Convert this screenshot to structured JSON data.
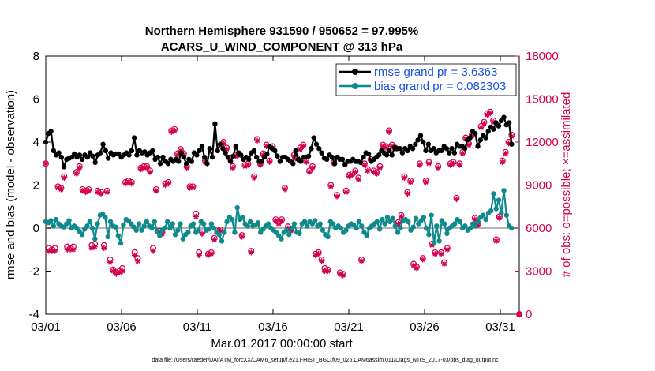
{
  "chart_data": {
    "type": "line",
    "title": "Northern Hemisphere 931590 / 950652 = 97.995%",
    "subtitle": "ACARS_U_WIND_COMPONENT @ 313 hPa",
    "xlabel": "Mar.01,2017 00:00:00 start",
    "ylabel_left": "rmse and bias (model - observation)",
    "ylabel_right": "# of obs: o=possible; ×=assimilated",
    "footnote": "data file: /Users/raeder/DAI/ATM_forcXX/CAM6_setup/f.e21.FHIST_BGC.f09_025.CAM6assim.011/Diags_NTrS_2017-03/obs_diag_output.nc",
    "xlim": [
      1,
      32.25
    ],
    "ylim_left": [
      -4,
      8
    ],
    "ylim_right": [
      0,
      18000
    ],
    "x_ticks": [
      1,
      6,
      11,
      16,
      21,
      26,
      31
    ],
    "x_tick_labels": [
      "03/01",
      "03/06",
      "03/11",
      "03/16",
      "03/21",
      "03/26",
      "03/31"
    ],
    "y_left_ticks": [
      "8",
      "6",
      "4",
      "2",
      "0",
      "-2",
      "-4"
    ],
    "y_right_ticks": [
      "18000",
      "15000",
      "12000",
      "9000",
      "6000",
      "3000",
      "0"
    ],
    "colors": {
      "rmse": "#000000",
      "bias": "#0f8a8c",
      "obs": "#d4004f",
      "legend_text": "#1d52e0",
      "zero_line": "#b4b4b4"
    },
    "legend": [
      {
        "name": "rmse grand pr = 3.6363"
      },
      {
        "name": "bias grand pr = 0.082303"
      }
    ],
    "series": [
      {
        "name": "rmse",
        "values": [
          4.0,
          4.4,
          4.5,
          3.6,
          3.4,
          3.5,
          3.3,
          2.85,
          3.2,
          3.25,
          3.3,
          3.45,
          3.3,
          3.4,
          3.2,
          3.4,
          3.3,
          3.5,
          3.35,
          3.05,
          3.4,
          3.5,
          3.9,
          3.6,
          3.25,
          3.5,
          3.4,
          3.45,
          3.45,
          3.3,
          3.4,
          3.5,
          3.4,
          3.6,
          4.2,
          3.4,
          3.6,
          3.5,
          3.55,
          3.4,
          3.5,
          3.6,
          3.2,
          3.3,
          3.0,
          3.3,
          3.1,
          3.0,
          3.2,
          3.1,
          3.2,
          3.1,
          3.5,
          3.3,
          3.0,
          3.2,
          3.1,
          3.5,
          3.4,
          3.6,
          3.8,
          3.3,
          3.0,
          3.7,
          3.3,
          4.85,
          3.6,
          3.9,
          3.7,
          3.5,
          3.3,
          3.1,
          3.35,
          3.8,
          3.5,
          3.4,
          3.2,
          3.3,
          3.2,
          3.5,
          3.6,
          3.3,
          3.1,
          3.1,
          3.3,
          3.45,
          3.8,
          3.7,
          3.6,
          3.35,
          3.1,
          3.3,
          3.3,
          3.2,
          3.1,
          3.0,
          3.6,
          3.2,
          3.1,
          3.3,
          3.3,
          3.35,
          3.7,
          4.2,
          3.9,
          3.7,
          3.5,
          3.25,
          3.2,
          3.4,
          3.3,
          3.0,
          3.3,
          3.2,
          3.2,
          2.95,
          3.1,
          3.1,
          3.2,
          3.1,
          3.1,
          3.05,
          3.3,
          3.5,
          3.45,
          3.1,
          3.2,
          3.3,
          3.4,
          3.6,
          3.5,
          3.4,
          3.6,
          3.4,
          3.75,
          3.7,
          3.7,
          3.5,
          3.7,
          3.6,
          3.8,
          3.7,
          3.9,
          4.1,
          4.3,
          4.0,
          3.6,
          3.9,
          3.6,
          3.7,
          3.5,
          3.6,
          3.6,
          3.8,
          3.7,
          3.5,
          3.7,
          3.5,
          3.9,
          3.8,
          3.8,
          3.7,
          4.1,
          4.2,
          4.5,
          4.4,
          3.8,
          4.1,
          4.3,
          4.2,
          4.5,
          4.7,
          4.6,
          4.9,
          4.75,
          5.0,
          5.15,
          4.8,
          4.9,
          3.9
        ]
      },
      {
        "name": "bias",
        "values": [
          0.3,
          0.25,
          0.35,
          0.1,
          0.4,
          0.2,
          0.1,
          0.05,
          0.2,
          0.35,
          0.0,
          0.1,
          0.0,
          -0.15,
          -0.3,
          -0.05,
          0.1,
          0.3,
          0.0,
          -0.5,
          0.2,
          0.6,
          0.65,
          0.5,
          -0.4,
          0.3,
          0.1,
          0.05,
          -0.35,
          -0.7,
          0.15,
          0.4,
          0.35,
          0.2,
          0.05,
          -0.1,
          0.2,
          -0.1,
          0.1,
          0.3,
          0.1,
          0.0,
          0.3,
          -0.15,
          -0.35,
          -0.1,
          0.0,
          0.3,
          0.0,
          0.2,
          -0.3,
          -0.1,
          0.2,
          -0.5,
          -0.3,
          -0.2,
          0.1,
          0.2,
          -0.2,
          -0.1,
          0.3,
          0.2,
          -0.1,
          -0.05,
          0.2,
          0.0,
          -0.2,
          -0.3,
          -0.6,
          -0.2,
          0.3,
          0.5,
          0.4,
          -0.2,
          0.95,
          0.4,
          0.5,
          0.2,
          0.1,
          0.3,
          0.1,
          0.15,
          0.25,
          -0.2,
          -0.05,
          0.1,
          0.2,
          0.0,
          -0.1,
          -0.2,
          -0.35,
          -0.5,
          -0.2,
          -0.1,
          -0.3,
          0.0,
          0.2,
          -0.2,
          -0.25,
          0.2,
          0.3,
          0.1,
          0.3,
          0.2,
          0.35,
          0.1,
          0.2,
          -0.1,
          -0.3,
          -0.4,
          0.3,
          0.2,
          0.0,
          0.1,
          0.0,
          -0.2,
          -0.1,
          0.1,
          0.2,
          0.15,
          0.0,
          0.3,
          0.1,
          -0.2,
          -0.35,
          0.0,
          0.1,
          0.2,
          0.3,
          -0.05,
          0.4,
          0.2,
          0.5,
          0.3,
          0.45,
          0.1,
          -0.2,
          0.0,
          0.35,
          0.4,
          0.3,
          -0.1,
          0.05,
          0.45,
          0.2,
          0.35,
          0.5,
          0.0,
          -0.3,
          0.6,
          -0.7,
          0.1,
          -0.6,
          0.35,
          0.2,
          -0.25,
          0.0,
          0.1,
          0.2,
          0.4,
          0.3,
          0.0,
          0.1,
          -0.1,
          0.0,
          0.2,
          0.1,
          0.3,
          0.5,
          0.6,
          0.4,
          0.7,
          0.8,
          1.6,
          0.9,
          1.3,
          0.7,
          1.75,
          0.6,
          0.1,
          0.0
        ]
      },
      {
        "name": "obs_possible",
        "values": [
          10500,
          4600,
          4500,
          4600,
          8900,
          8800,
          9600,
          4700,
          4600,
          4700,
          9900,
          10300,
          8700,
          8600,
          8700,
          4800,
          4900,
          8600,
          8500,
          4800,
          8600,
          3800,
          3100,
          2900,
          3000,
          3200,
          9200,
          9300,
          9200,
          4300,
          3900,
          10200,
          10300,
          10300,
          10000,
          4600,
          8700,
          5800,
          5700,
          9100,
          9200,
          12800,
          12900,
          11200,
          11500,
          11200,
          10300,
          8900,
          8900,
          7000,
          4300,
          5700,
          10700,
          4200,
          4300,
          5300,
          5900,
          5900,
          12000,
          11600,
          10900,
          10300,
          11100,
          11200,
          5500,
          10400,
          10500,
          4400,
          9600,
          12200,
          10500,
          11200,
          11800,
          10700,
          11700,
          6600,
          6400,
          6600,
          8800,
          6100,
          5900,
          11100,
          10900,
          11600,
          11800,
          10700,
          10000,
          10300,
          4200,
          4300,
          3800,
          3200,
          3100,
          9000,
          10600,
          8300,
          2900,
          2800,
          8600,
          9700,
          9800,
          10000,
          9500,
          3800,
          10500,
          10100,
          10800,
          10000,
          9900,
          10300,
          11800,
          11700,
          12800,
          11800,
          11600,
          6400,
          6900,
          9600,
          8500,
          9300,
          3500,
          3300,
          10500,
          3900,
          9300,
          10600,
          4900,
          4300,
          10300,
          4300,
          3600,
          4600,
          10500,
          10600,
          8100,
          10500,
          11300,
          12300,
          11900,
          12500,
          6700,
          6300,
          13100,
          13400,
          14000,
          14100,
          13500,
          5200,
          6800,
          10700,
          11300,
          12000,
          12500
        ]
      },
      {
        "name": "obs_assimilated",
        "values": [
          10500,
          4400,
          4400,
          4400,
          8800,
          8700,
          9500,
          4500,
          4500,
          4500,
          9800,
          10200,
          8600,
          8500,
          8600,
          4600,
          4700,
          8500,
          8400,
          4600,
          8500,
          3600,
          3000,
          2800,
          2900,
          3000,
          9100,
          9200,
          9100,
          4100,
          3700,
          10100,
          10200,
          10200,
          9900,
          4400,
          8600,
          5600,
          5600,
          9000,
          9100,
          12700,
          12800,
          11100,
          11400,
          11100,
          10200,
          8800,
          8800,
          6800,
          4100,
          5600,
          10600,
          4100,
          4200,
          5200,
          5800,
          5800,
          11900,
          11500,
          10800,
          10200,
          11000,
          11100,
          5400,
          10300,
          10400,
          4300,
          9500,
          12100,
          10400,
          11100,
          11700,
          10600,
          11600,
          6500,
          6300,
          6500,
          8700,
          6000,
          5800,
          11000,
          10800,
          11500,
          11700,
          10600,
          9900,
          10200,
          4100,
          4200,
          3700,
          3000,
          3000,
          8900,
          10500,
          8200,
          2800,
          2700,
          8500,
          9600,
          9700,
          9900,
          9400,
          3700,
          10400,
          10000,
          10700,
          9900,
          9800,
          10200,
          11700,
          11600,
          12700,
          11700,
          11500,
          6300,
          6800,
          9500,
          8400,
          9200,
          3400,
          3200,
          10400,
          3800,
          9200,
          10500,
          4800,
          4200,
          10200,
          4200,
          3500,
          4500,
          10400,
          10500,
          8000,
          10400,
          11200,
          12200,
          11800,
          12400,
          6600,
          6200,
          13000,
          13300,
          13900,
          14000,
          13400,
          5100,
          6700,
          10600,
          11200,
          11900,
          12400
        ]
      }
    ]
  }
}
